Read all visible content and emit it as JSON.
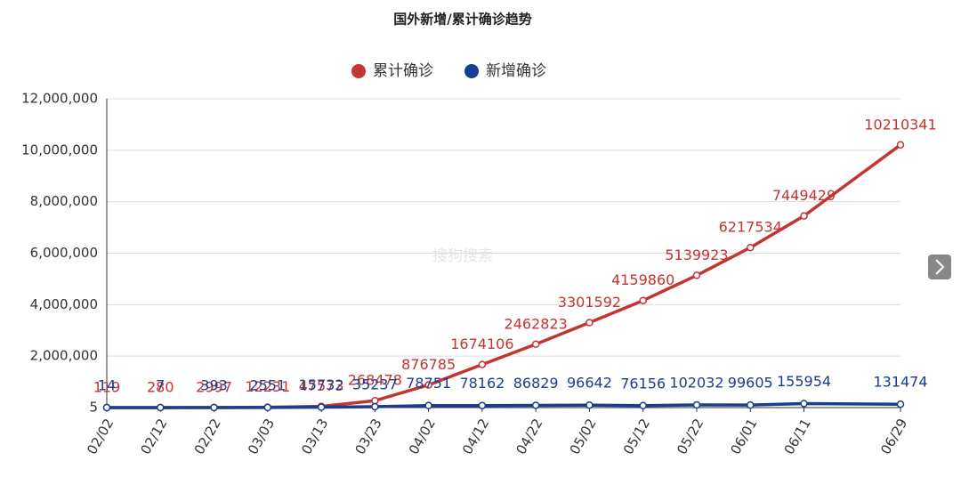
{
  "chart_data": {
    "type": "line",
    "title": "国外新增/累计确诊趋势",
    "watermark": "搜狗搜索",
    "x": [
      "02/02",
      "02/12",
      "02/22",
      "03/03",
      "03/13",
      "03/23",
      "04/02",
      "04/12",
      "04/22",
      "05/02",
      "05/12",
      "05/22",
      "06/01",
      "06/11",
      "06/29"
    ],
    "series": [
      {
        "name": "累计确诊",
        "color": "#c23531",
        "values": [
          119,
          280,
          2997,
          12231,
          47573,
          268478,
          876785,
          1674106,
          2462823,
          3301592,
          4159860,
          5139923,
          6217534,
          7449429,
          10210341
        ]
      },
      {
        "name": "新增确诊",
        "color": "#1b3d8f",
        "values": [
          14,
          7,
          393,
          2551,
          15732,
          35237,
          78751,
          78162,
          86829,
          96642,
          76156,
          102032,
          99605,
          155954,
          131474
        ]
      }
    ],
    "ylim": [
      5,
      12000000
    ],
    "yticks": [
      5,
      {
        "value": 2000000,
        "label": "2,000,000"
      },
      {
        "value": 4000000,
        "label": "4,000,000"
      },
      {
        "value": 6000000,
        "label": "6,000,000"
      },
      {
        "value": 8000000,
        "label": "8,000,000"
      },
      {
        "value": 10000000,
        "label": "10,000,000"
      },
      {
        "value": 12000000,
        "label": "12,000,000"
      }
    ],
    "grid": true,
    "legend": "top"
  }
}
